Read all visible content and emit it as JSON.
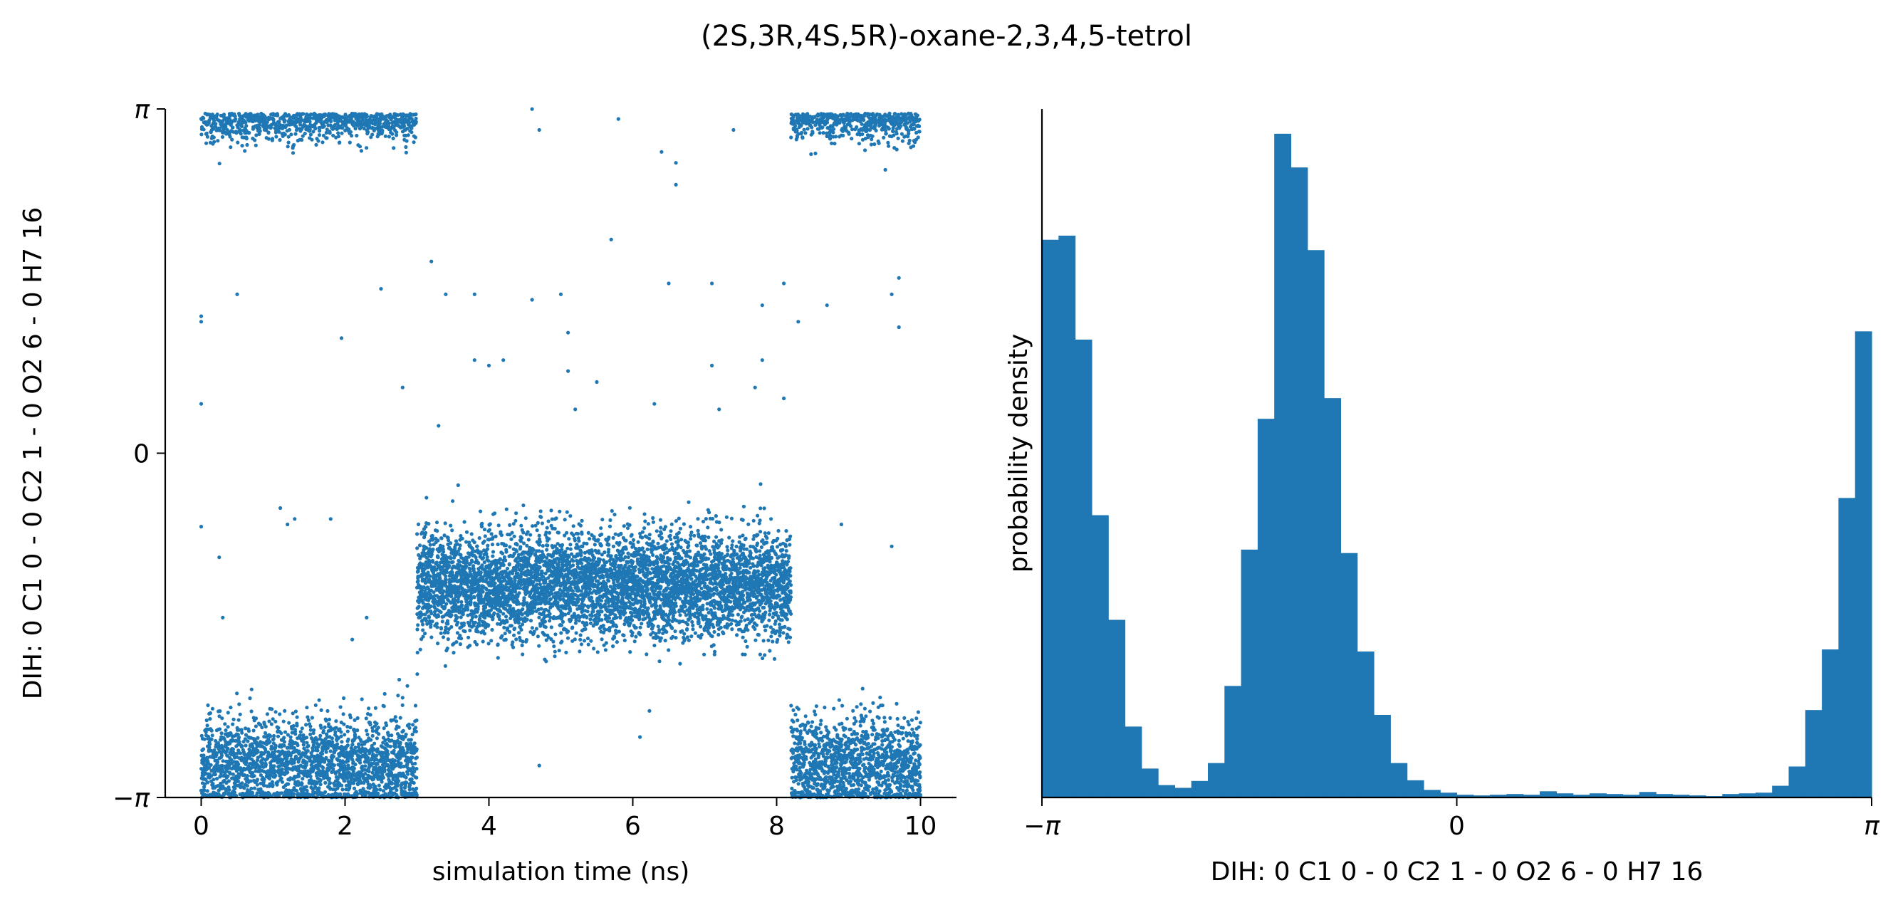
{
  "figure": {
    "suptitle": "(2S,3R,4S,5R)-oxane-2,3,4,5-tetrol"
  },
  "colors": {
    "series": "#1f77b4",
    "axis": "#000000",
    "background": "#ffffff"
  },
  "chart_data": [
    {
      "type": "scatter",
      "title": "",
      "xlabel": "simulation time (ns)",
      "ylabel": "DIH:  0 C1 0 -  0 C2 1 -  0 O2 6 -  0 H7 16",
      "xlim": [
        -0.5,
        10.5
      ],
      "ylim": [
        -3.14159,
        3.14159
      ],
      "x_ticks": [
        0,
        2,
        4,
        6,
        8,
        10
      ],
      "x_tick_labels": [
        "0",
        "2",
        "4",
        "6",
        "8",
        "10"
      ],
      "y_ticks": [
        -3.14159,
        0,
        3.14159
      ],
      "y_tick_labels": [
        "−π",
        "0",
        "π"
      ],
      "grid": false,
      "n_points": 10000,
      "segments": [
        {
          "t_start": 0.0,
          "t_end": 3.0,
          "state": "low_wrap",
          "center": -2.85,
          "spread": 0.22
        },
        {
          "t_start": 3.0,
          "t_end": 8.2,
          "state": "middle",
          "center": -1.2,
          "spread": 0.24
        },
        {
          "t_start": 8.2,
          "t_end": 10.0,
          "state": "low_wrap",
          "center": -2.85,
          "spread": 0.22
        }
      ],
      "high_band": {
        "t_ranges": [
          [
            0.0,
            3.0
          ],
          [
            8.2,
            10.0
          ]
        ],
        "center": 3.0,
        "spread": 0.12
      },
      "outliers": [
        [
          0.0,
          1.2
        ],
        [
          0.0,
          1.25
        ],
        [
          0.0,
          0.45
        ],
        [
          0.0,
          -0.67
        ],
        [
          0.25,
          -0.95
        ],
        [
          0.3,
          -1.5
        ],
        [
          0.5,
          1.45
        ],
        [
          1.1,
          -0.5
        ],
        [
          1.2,
          -0.65
        ],
        [
          1.3,
          -0.6
        ],
        [
          1.8,
          -0.6
        ],
        [
          1.95,
          1.05
        ],
        [
          2.1,
          -1.7
        ],
        [
          2.3,
          -1.5
        ],
        [
          2.5,
          1.5
        ],
        [
          2.8,
          0.6
        ],
        [
          3.2,
          1.75
        ],
        [
          3.3,
          0.25
        ],
        [
          3.4,
          1.45
        ],
        [
          3.8,
          1.45
        ],
        [
          3.8,
          0.85
        ],
        [
          4.0,
          0.8
        ],
        [
          4.2,
          0.85
        ],
        [
          4.6,
          1.4
        ],
        [
          4.6,
          3.14
        ],
        [
          4.7,
          2.95
        ],
        [
          5.0,
          1.45
        ],
        [
          5.1,
          1.1
        ],
        [
          5.1,
          0.75
        ],
        [
          5.2,
          0.4
        ],
        [
          5.5,
          0.65
        ],
        [
          5.7,
          1.95
        ],
        [
          5.8,
          3.05
        ],
        [
          6.1,
          -2.59
        ],
        [
          6.3,
          0.45
        ],
        [
          6.4,
          2.75
        ],
        [
          6.5,
          1.55
        ],
        [
          6.6,
          2.65
        ],
        [
          6.6,
          2.45
        ],
        [
          7.1,
          1.55
        ],
        [
          7.1,
          0.8
        ],
        [
          7.2,
          0.4
        ],
        [
          7.4,
          2.95
        ],
        [
          7.7,
          0.6
        ],
        [
          7.8,
          1.35
        ],
        [
          7.8,
          0.85
        ],
        [
          8.1,
          0.5
        ],
        [
          8.1,
          1.55
        ],
        [
          8.3,
          1.2
        ],
        [
          8.7,
          1.35
        ],
        [
          8.9,
          -0.65
        ],
        [
          9.6,
          -0.85
        ],
        [
          9.6,
          1.45
        ],
        [
          9.7,
          1.6
        ],
        [
          9.7,
          1.15
        ],
        [
          4.7,
          -2.85
        ]
      ]
    },
    {
      "type": "bar",
      "subtype": "histogram",
      "title": "",
      "xlabel": "DIH:  0 C1 0 -  0 C2 1 -  0 O2 6 -  0 H7 16",
      "ylabel": "probability density",
      "xlim": [
        -3.14159,
        3.14159
      ],
      "x_ticks": [
        -3.14159,
        0,
        3.14159
      ],
      "x_tick_labels": [
        "−π",
        "0",
        "π"
      ],
      "y_ticks_visible": false,
      "grid": false,
      "bins": 50,
      "bin_edges_range": [
        -3.14159,
        3.14159
      ],
      "values": [
        0.81,
        0.816,
        0.665,
        0.41,
        0.258,
        0.103,
        0.042,
        0.018,
        0.014,
        0.024,
        0.05,
        0.162,
        0.36,
        0.55,
        0.964,
        0.915,
        0.795,
        0.58,
        0.355,
        0.212,
        0.12,
        0.05,
        0.025,
        0.011,
        0.007,
        0.004,
        0.003,
        0.004,
        0.005,
        0.004,
        0.009,
        0.006,
        0.004,
        0.006,
        0.005,
        0.004,
        0.008,
        0.005,
        0.004,
        0.003,
        0.002,
        0.005,
        0.006,
        0.007,
        0.017,
        0.045,
        0.127,
        0.215,
        0.435,
        0.677
      ],
      "ylim": [
        0,
        1.0
      ]
    }
  ]
}
